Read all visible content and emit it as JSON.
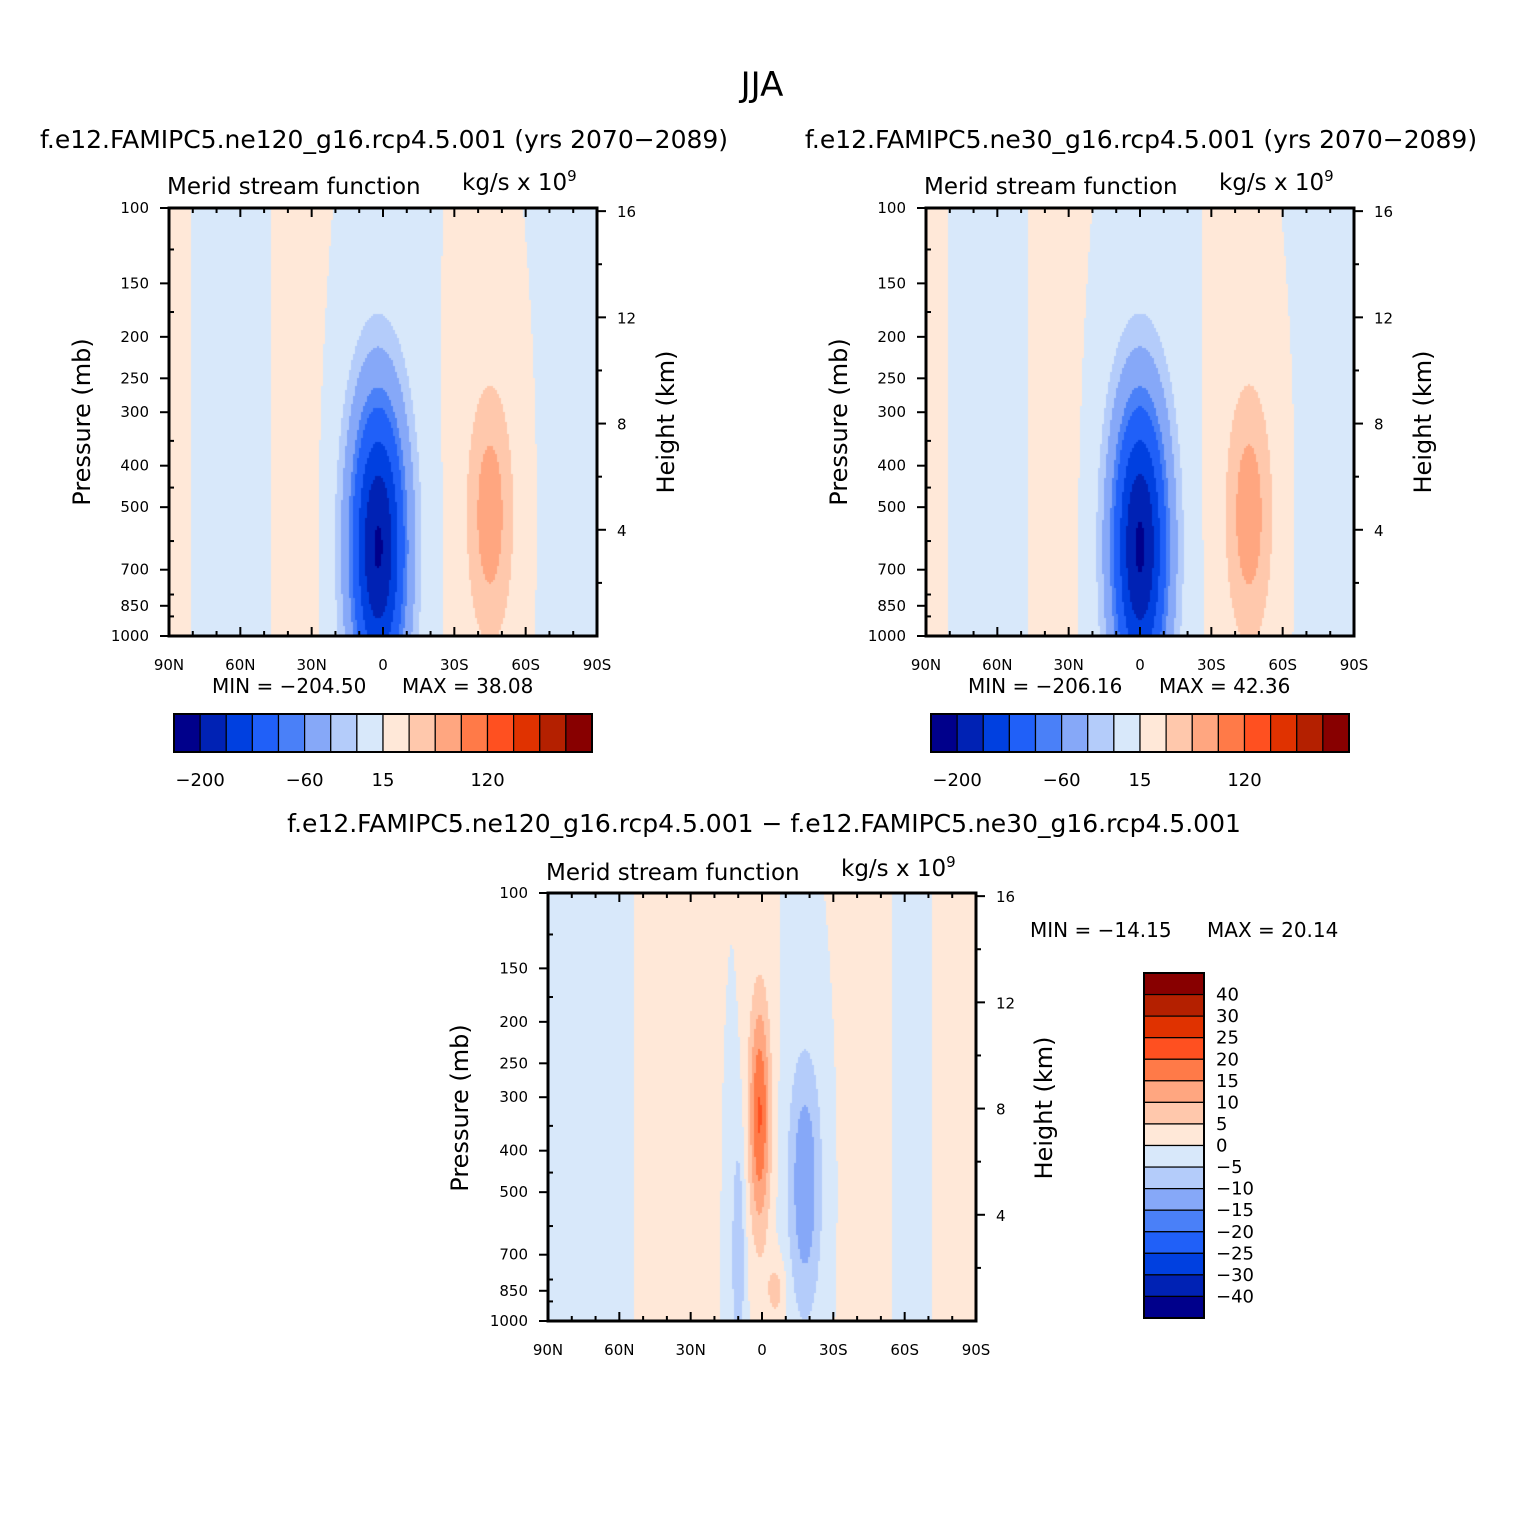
{
  "title": "JJA",
  "colors": {
    "levels": [
      "#00008B",
      "#0022B4",
      "#0040E0",
      "#2060F8",
      "#4A80F8",
      "#86A8F8",
      "#B4CCFA",
      "#D8E8FA",
      "#FFE8D8",
      "#FFC8AC",
      "#FFA680",
      "#FF7A48",
      "#FF5020",
      "#E03200",
      "#B42000",
      "#880000"
    ],
    "diff_levels": [
      "#00008B",
      "#0022B4",
      "#0040E0",
      "#2060F8",
      "#4A80F8",
      "#86A8F8",
      "#B4CCFA",
      "#D8E8FA",
      "#FFE8D8",
      "#FFC8AC",
      "#FFA680",
      "#FF7A48",
      "#FF5020",
      "#E03200",
      "#B42000",
      "#880000"
    ]
  },
  "chart_data": [
    {
      "type": "heatmap",
      "title": "f.e12.FAMIPC5.ne120_g16.rcp4.5.001 (yrs 2070−2089)",
      "variable": "Merid stream function",
      "units": "kg/s x 10",
      "units_exp": "9",
      "ylabel": "Pressure (mb)",
      "ylabel_right": "Height (km)",
      "xticks": [
        "90N",
        "60N",
        "30N",
        "0",
        "30S",
        "60S",
        "90S"
      ],
      "xlim": [
        90,
        -90
      ],
      "yticks": [
        "100",
        "150",
        "200",
        "250",
        "300",
        "400",
        "500",
        "700",
        "850",
        "1000"
      ],
      "ylim": [
        1000,
        100
      ],
      "yticks_right": [
        "16",
        "12",
        "8",
        "4"
      ],
      "min_label": "MIN = −204.50",
      "max_label": "MAX =  38.08",
      "min": -204.5,
      "max": 38.08,
      "colorbar_labels": [
        "−200",
        "−60",
        "15",
        "120"
      ],
      "field": {
        "peak_neg": {
          "lat": -3,
          "p": 650,
          "value": -204.5
        },
        "peak_pos": {
          "lat": -45,
          "p": 500,
          "value": 38.08
        }
      }
    },
    {
      "type": "heatmap",
      "title": "f.e12.FAMIPC5.ne30_g16.rcp4.5.001 (yrs 2070−2089)",
      "variable": "Merid stream function",
      "units": "kg/s x 10",
      "units_exp": "9",
      "ylabel": "Pressure (mb)",
      "ylabel_right": "Height (km)",
      "xticks": [
        "90N",
        "60N",
        "30N",
        "0",
        "30S",
        "60S",
        "90S"
      ],
      "xlim": [
        90,
        -90
      ],
      "yticks": [
        "100",
        "150",
        "200",
        "250",
        "300",
        "400",
        "500",
        "700",
        "850",
        "1000"
      ],
      "ylim": [
        1000,
        100
      ],
      "yticks_right": [
        "16",
        "12",
        "8",
        "4"
      ],
      "min_label": "MIN = −206.16",
      "max_label": "MAX =  42.36",
      "min": -206.16,
      "max": 42.36,
      "colorbar_labels": [
        "−200",
        "−60",
        "15",
        "120"
      ],
      "field": {
        "peak_neg": {
          "lat": 1,
          "p": 640,
          "value": -206.16
        },
        "peak_pos": {
          "lat": -42,
          "p": 500,
          "value": 42.36
        }
      }
    },
    {
      "type": "heatmap",
      "title": "f.e12.FAMIPC5.ne120_g16.rcp4.5.001 − f.e12.FAMIPC5.ne30_g16.rcp4.5.001",
      "variable": "Merid stream function",
      "units": "kg/s x 10",
      "units_exp": "9",
      "ylabel": "Pressure (mb)",
      "ylabel_right": "Height (km)",
      "xticks": [
        "90N",
        "60N",
        "30N",
        "0",
        "30S",
        "60S",
        "90S"
      ],
      "xlim": [
        90,
        -90
      ],
      "yticks": [
        "100",
        "150",
        "200",
        "250",
        "300",
        "400",
        "500",
        "700",
        "850",
        "1000"
      ],
      "ylim": [
        1000,
        100
      ],
      "yticks_right": [
        "16",
        "12",
        "8",
        "4"
      ],
      "min_label": "MIN = −14.15",
      "max_label": "MAX =  20.14",
      "min": -14.15,
      "max": 20.14,
      "colorbar_labels": [
        "40",
        "30",
        "25",
        "20",
        "15",
        "10",
        "5",
        "0",
        "−5",
        "−10",
        "−15",
        "−20",
        "−25",
        "−30",
        "−40"
      ],
      "field": {
        "peak_pos": {
          "lat": 1,
          "p": 330,
          "value": 20.14
        },
        "peak_neg": {
          "lat": -18,
          "p": 500,
          "value": -14.15
        }
      }
    }
  ]
}
